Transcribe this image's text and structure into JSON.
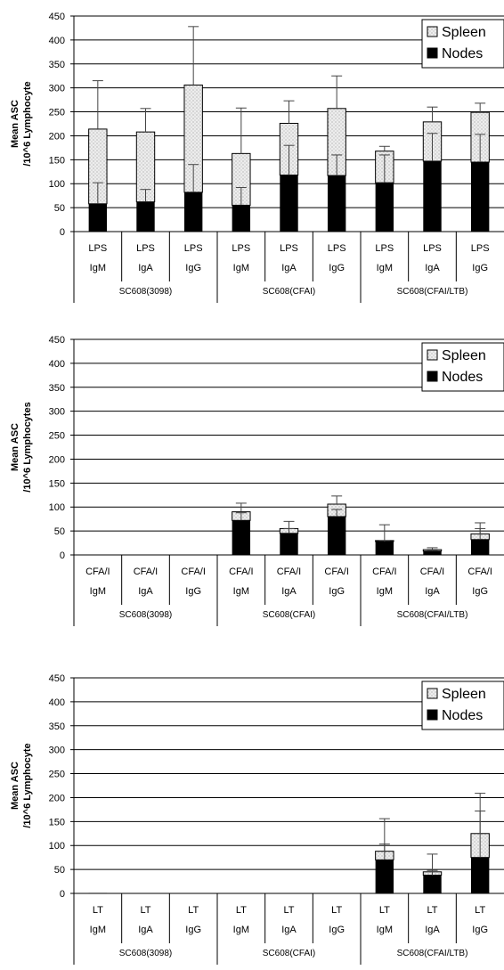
{
  "chart_data": [
    {
      "type": "bar",
      "stacked": true,
      "ylabel": "Mean ASC\n/10^6 Lymphocyte",
      "ylim": [
        0,
        450
      ],
      "yticks": [
        0,
        50,
        100,
        150,
        200,
        250,
        300,
        350,
        400,
        450
      ],
      "grid": true,
      "legend_position": "top-right",
      "categories": [
        {
          "line1": "LPS",
          "line2": "IgM"
        },
        {
          "line1": "LPS",
          "line2": "IgA"
        },
        {
          "line1": "LPS",
          "line2": "IgG"
        },
        {
          "line1": "LPS",
          "line2": "IgM"
        },
        {
          "line1": "LPS",
          "line2": "IgA"
        },
        {
          "line1": "LPS",
          "line2": "IgG"
        },
        {
          "line1": "LPS",
          "line2": "IgM"
        },
        {
          "line1": "LPS",
          "line2": "IgA"
        },
        {
          "line1": "LPS",
          "line2": "IgG"
        }
      ],
      "groups": [
        "SC608(3098)",
        "SC608(CFAI)",
        "SC608(CFAI/LTB)"
      ],
      "series": [
        {
          "name": "Nodes",
          "color": "#000000",
          "values": [
            58,
            62,
            82,
            55,
            118,
            117,
            102,
            147,
            145
          ],
          "error": [
            102,
            88,
            140,
            92,
            180,
            160,
            160,
            205,
            203
          ]
        },
        {
          "name": "Spleen",
          "color": "#e4e4e4",
          "values": [
            156,
            146,
            224,
            108,
            108,
            140,
            66,
            82,
            104
          ],
          "error": [
            315,
            257,
            428,
            258,
            273,
            325,
            178,
            260,
            268
          ]
        }
      ]
    },
    {
      "type": "bar",
      "stacked": true,
      "ylabel": "Mean ASC\n/10^6 Lymphocytes",
      "ylim": [
        0,
        450
      ],
      "yticks": [
        0,
        50,
        100,
        150,
        200,
        250,
        300,
        350,
        400,
        450
      ],
      "grid": true,
      "legend_position": "top-right",
      "categories": [
        {
          "line1": "CFA/I",
          "line2": "IgM"
        },
        {
          "line1": "CFA/I",
          "line2": "IgA"
        },
        {
          "line1": "CFA/I",
          "line2": "IgG"
        },
        {
          "line1": "CFA/I",
          "line2": "IgM"
        },
        {
          "line1": "CFA/I",
          "line2": "IgA"
        },
        {
          "line1": "CFA/I",
          "line2": "IgG"
        },
        {
          "line1": "CFA/I",
          "line2": "IgM"
        },
        {
          "line1": "CFA/I",
          "line2": "IgA"
        },
        {
          "line1": "CFA/I",
          "line2": "IgG"
        }
      ],
      "groups": [
        "SC608(3098)",
        "SC608(CFAI)",
        "SC608(CFAI/LTB)"
      ],
      "series": [
        {
          "name": "Nodes",
          "color": "#000000",
          "values": [
            0,
            0,
            0,
            72,
            45,
            80,
            28,
            8,
            32
          ],
          "error": [
            null,
            null,
            null,
            88,
            55,
            95,
            30,
            10,
            55
          ]
        },
        {
          "name": "Spleen",
          "color": "#e4e4e4",
          "values": [
            0,
            0,
            0,
            18,
            10,
            26,
            2,
            3,
            12
          ],
          "error": [
            null,
            null,
            null,
            108,
            70,
            123,
            63,
            15,
            67
          ]
        }
      ]
    },
    {
      "type": "bar",
      "stacked": true,
      "ylabel": "Mean ASC\n/10^6 Lymphocyte",
      "ylim": [
        0,
        450
      ],
      "yticks": [
        0,
        50,
        100,
        150,
        200,
        250,
        300,
        350,
        400,
        450
      ],
      "grid": true,
      "legend_position": "top-right",
      "categories": [
        {
          "line1": "LT",
          "line2": "IgM"
        },
        {
          "line1": "LT",
          "line2": "IgA"
        },
        {
          "line1": "LT",
          "line2": "IgG"
        },
        {
          "line1": "LT",
          "line2": "IgM"
        },
        {
          "line1": "LT",
          "line2": "IgA"
        },
        {
          "line1": "LT",
          "line2": "IgG"
        },
        {
          "line1": "LT",
          "line2": "IgM"
        },
        {
          "line1": "LT",
          "line2": "IgA"
        },
        {
          "line1": "LT",
          "line2": "IgG"
        }
      ],
      "groups": [
        "SC608(3098)",
        "SC608(CFAI)",
        "SC608(CFAI/LTB)"
      ],
      "series": [
        {
          "name": "Nodes",
          "color": "#000000",
          "values": [
            1,
            0,
            0,
            0,
            0,
            0,
            70,
            38,
            75
          ],
          "error": [
            null,
            null,
            null,
            null,
            null,
            null,
            103,
            48,
            172
          ]
        },
        {
          "name": "Spleen",
          "color": "#e4e4e4",
          "values": [
            0,
            0,
            0,
            0,
            0,
            0,
            18,
            7,
            50
          ],
          "error": [
            null,
            null,
            null,
            null,
            null,
            null,
            156,
            82,
            209
          ]
        }
      ]
    }
  ]
}
